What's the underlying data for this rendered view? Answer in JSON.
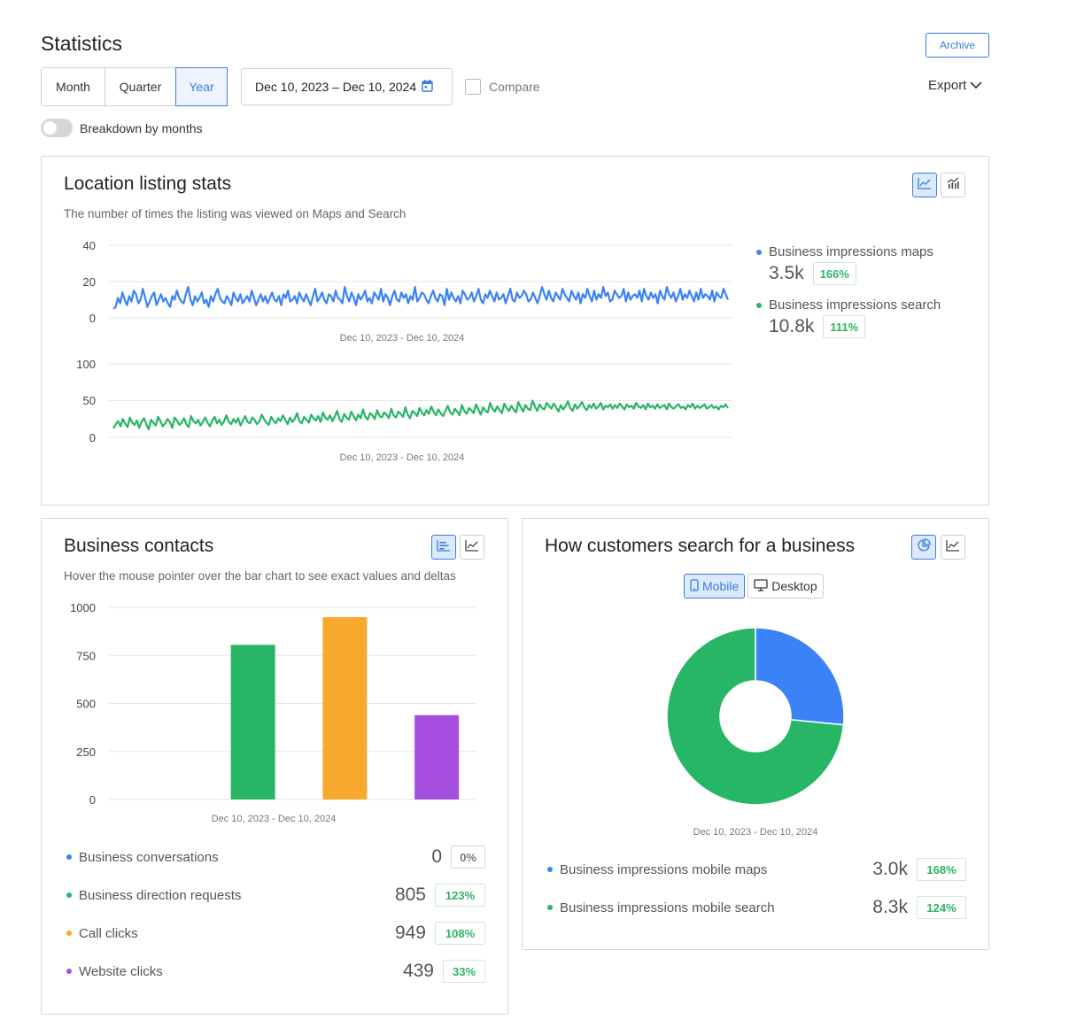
{
  "page": {
    "title": "Statistics",
    "archive_label": "Archive",
    "periods": [
      "Month",
      "Quarter",
      "Year"
    ],
    "active_period": "Year",
    "date_range": "Dec 10, 2023 – Dec 10, 2024",
    "compare_label": "Compare",
    "export_label": "Export",
    "breakdown_label": "Breakdown by months",
    "accent_color": "#3b7ddd"
  },
  "location": {
    "title": "Location listing stats",
    "subtitle": "The number of times the listing was viewed on Maps and Search",
    "legend": [
      {
        "label": "Business impressions maps",
        "value": "3.5k",
        "delta": "166%",
        "color": "#3b82f6"
      },
      {
        "label": "Business impressions search",
        "value": "10.8k",
        "delta": "111%",
        "color": "#27b566"
      }
    ]
  },
  "contacts": {
    "title": "Business contacts",
    "subtitle": "Hover the mouse pointer over the bar chart to see exact values and deltas",
    "rows": [
      {
        "label": "Business conversations",
        "value": "0",
        "delta": "0%",
        "color": "#3b82f6"
      },
      {
        "label": "Business direction requests",
        "value": "805",
        "delta": "123%",
        "color": "#27b566"
      },
      {
        "label": "Call clicks",
        "value": "949",
        "delta": "108%",
        "color": "#f7a92e"
      },
      {
        "label": "Website clicks",
        "value": "439",
        "delta": "33%",
        "color": "#a64ee0"
      }
    ]
  },
  "search": {
    "title": "How customers search for a business",
    "mobile_label": "Mobile",
    "desktop_label": "Desktop",
    "active_device": "Mobile",
    "rows": [
      {
        "label": "Business impressions mobile maps",
        "value": "3.0k",
        "delta": "168%",
        "color": "#3b82f6"
      },
      {
        "label": "Business impressions mobile search",
        "value": "8.3k",
        "delta": "124%",
        "color": "#27b566"
      }
    ]
  },
  "chart_data": [
    {
      "type": "line",
      "title": "",
      "xlabel": "Dec 10, 2023 - Dec 10, 2024",
      "ylabel": "",
      "ylim": [
        0,
        40
      ],
      "yticks": [
        0,
        20,
        40
      ],
      "grid": true,
      "series": [
        {
          "name": "Business impressions maps",
          "color": "#3b82f6",
          "total": 3500,
          "values": [
            5,
            6,
            11,
            8,
            14,
            10,
            7,
            12,
            9,
            15,
            13,
            8,
            10,
            16,
            11,
            6,
            9,
            12,
            14,
            7,
            10,
            13,
            9,
            11,
            8,
            6,
            12,
            10,
            15,
            11,
            9,
            8,
            13,
            17,
            10,
            7,
            12,
            9,
            11,
            14,
            8,
            10,
            6,
            12,
            9,
            13,
            16,
            11,
            9,
            8,
            12,
            10,
            7,
            14,
            11,
            9,
            13,
            8,
            10,
            12,
            9,
            15,
            11,
            7,
            10,
            13,
            9,
            12,
            8,
            11,
            14,
            10,
            9,
            12,
            7,
            13,
            11,
            15,
            9,
            10,
            12,
            8,
            14,
            11,
            9,
            13,
            10,
            7,
            12,
            16,
            9,
            11,
            14,
            10,
            8,
            13,
            12,
            9,
            15,
            11,
            10,
            8,
            17,
            12,
            9,
            14,
            11,
            7,
            13,
            10,
            12,
            15,
            9,
            11,
            8,
            14,
            12,
            10,
            16,
            9,
            13,
            11,
            7,
            12,
            15,
            10,
            9,
            14,
            11,
            13,
            8,
            12,
            10,
            17,
            9,
            11,
            14,
            13,
            10,
            8,
            12,
            15,
            11,
            9,
            13,
            12,
            7,
            16,
            10,
            14,
            11,
            9,
            12,
            8,
            15,
            13,
            10,
            11,
            14,
            9,
            12,
            16,
            10,
            8,
            13,
            11,
            15,
            12,
            9,
            14,
            10,
            11,
            13,
            8,
            12,
            16,
            10,
            9,
            14,
            11,
            12,
            15,
            13,
            9,
            10,
            14,
            11,
            8,
            12,
            17,
            13,
            10,
            15,
            11,
            9,
            14,
            12,
            10,
            16,
            13,
            11,
            9,
            15,
            12,
            10,
            14,
            8,
            13,
            11,
            16,
            12,
            9,
            15,
            10,
            13,
            11,
            17,
            12,
            14,
            9,
            10,
            15,
            13,
            11,
            12,
            16,
            9,
            14,
            10,
            12,
            13,
            11,
            15,
            9,
            16,
            12,
            10,
            14,
            11,
            13,
            8,
            15,
            12,
            10,
            17,
            13,
            11,
            14,
            9,
            12,
            16,
            10,
            13,
            11,
            15,
            12,
            9,
            14,
            10,
            16,
            11,
            13,
            12,
            10,
            15,
            9,
            14,
            12,
            11,
            16,
            13,
            10
          ]
        }
      ]
    },
    {
      "type": "line",
      "title": "",
      "xlabel": "Dec 10, 2023 - Dec 10, 2024",
      "ylabel": "",
      "ylim": [
        0,
        100
      ],
      "yticks": [
        0,
        50,
        100
      ],
      "grid": true,
      "series": [
        {
          "name": "Business impressions search",
          "color": "#27b566",
          "total": 10800,
          "values": [
            12,
            18,
            22,
            15,
            25,
            19,
            14,
            27,
            20,
            17,
            23,
            13,
            21,
            26,
            18,
            11,
            24,
            20,
            16,
            28,
            22,
            15,
            19,
            25,
            21,
            13,
            27,
            23,
            17,
            20,
            26,
            18,
            14,
            29,
            22,
            19,
            24,
            16,
            21,
            27,
            20,
            15,
            23,
            28,
            19,
            24,
            17,
            22,
            30,
            21,
            18,
            25,
            20,
            26,
            16,
            23,
            29,
            21,
            19,
            27,
            24,
            18,
            22,
            31,
            25,
            20,
            17,
            28,
            23,
            19,
            26,
            22,
            30,
            24,
            18,
            27,
            21,
            25,
            33,
            22,
            19,
            28,
            24,
            20,
            31,
            26,
            23,
            29,
            21,
            34,
            27,
            24,
            30,
            22,
            28,
            36,
            25,
            21,
            32,
            27,
            24,
            35,
            29,
            23,
            31,
            26,
            38,
            28,
            24,
            33,
            30,
            25,
            37,
            29,
            27,
            34,
            31,
            26,
            39,
            30,
            27,
            35,
            32,
            28,
            41,
            31,
            26,
            36,
            33,
            29,
            40,
            34,
            30,
            37,
            32,
            42,
            35,
            30,
            38,
            33,
            29,
            36,
            43,
            34,
            31,
            39,
            35,
            30,
            44,
            36,
            32,
            40,
            37,
            33,
            45,
            38,
            31,
            41,
            36,
            34,
            47,
            39,
            35,
            42,
            37,
            33,
            46,
            40,
            36,
            43,
            38,
            34,
            48,
            41,
            35,
            44,
            39,
            37,
            50,
            42,
            36,
            45,
            40,
            38,
            47,
            43,
            39,
            46,
            41,
            35,
            44,
            38,
            42,
            49,
            40,
            36,
            45,
            39,
            43,
            48,
            41,
            37,
            44,
            40,
            46,
            39,
            42,
            47,
            38,
            43,
            41,
            45,
            39,
            44,
            40,
            46,
            42,
            38,
            45,
            41,
            43,
            39,
            47,
            42,
            40,
            44,
            38,
            46,
            41,
            43,
            39,
            45,
            40,
            42,
            44,
            38,
            46,
            41,
            39,
            43,
            45,
            40,
            42,
            38,
            44,
            41,
            46,
            39,
            43,
            40,
            42,
            45,
            39,
            41,
            44,
            40,
            42,
            38,
            43,
            41,
            45,
            40
          ]
        }
      ]
    },
    {
      "type": "bar",
      "title": "",
      "xlabel": "Dec 10, 2023 - Dec 10, 2024",
      "ylabel": "",
      "ylim": [
        0,
        1000
      ],
      "yticks": [
        0,
        250,
        500,
        750,
        1000
      ],
      "grid": true,
      "categories": [
        "Business conversations",
        "Business direction requests",
        "Call clicks",
        "Website clicks"
      ],
      "values": [
        0,
        805,
        949,
        439
      ],
      "colors": [
        "#3b82f6",
        "#27b566",
        "#f7a92e",
        "#a64ee0"
      ]
    },
    {
      "type": "pie",
      "title": "",
      "xlabel": "Dec 10, 2023 - Dec 10, 2024",
      "categories": [
        "Business impressions mobile maps",
        "Business impressions mobile search"
      ],
      "values": [
        3000,
        8300
      ],
      "colors": [
        "#3b82f6",
        "#27b566"
      ],
      "donut": true
    }
  ]
}
